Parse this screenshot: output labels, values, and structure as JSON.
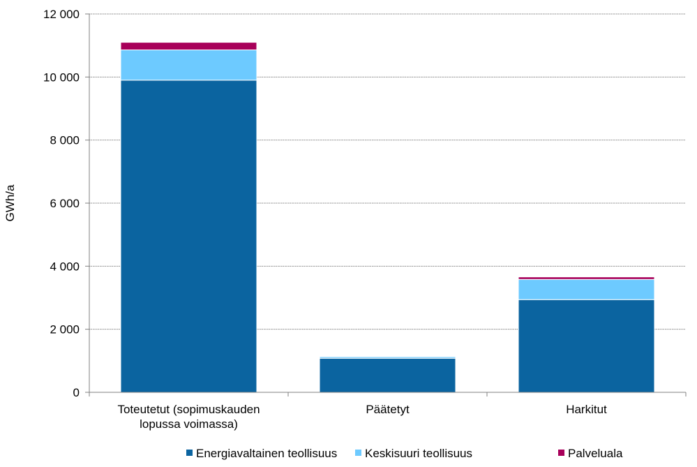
{
  "chart_data": {
    "type": "bar",
    "stacked": true,
    "title": "",
    "xlabel": "",
    "ylabel": "GWh/a",
    "ylim": [
      0,
      12000
    ],
    "yticks": [
      0,
      2000,
      4000,
      6000,
      8000,
      10000,
      12000
    ],
    "ytick_labels": [
      "0",
      "2 000",
      "4 000",
      "6 000",
      "8 000",
      "10 000",
      "12 000"
    ],
    "grid": true,
    "legend_position": "bottom",
    "categories": [
      [
        "Toteutetut (sopimuskauden",
        "lopussa voimassa)"
      ],
      [
        "Päätetyt"
      ],
      [
        "Harkitut"
      ]
    ],
    "series": [
      {
        "name": "Energiavaltainen teollisuus",
        "color": "#0b64a0",
        "values": [
          9900,
          1080,
          2940
        ]
      },
      {
        "name": "Keskisuuri teollisuus",
        "color": "#6dcaff",
        "values": [
          960,
          50,
          640
        ]
      },
      {
        "name": "Palveluala",
        "color": "#a8005a",
        "values": [
          240,
          5,
          80
        ]
      }
    ]
  }
}
